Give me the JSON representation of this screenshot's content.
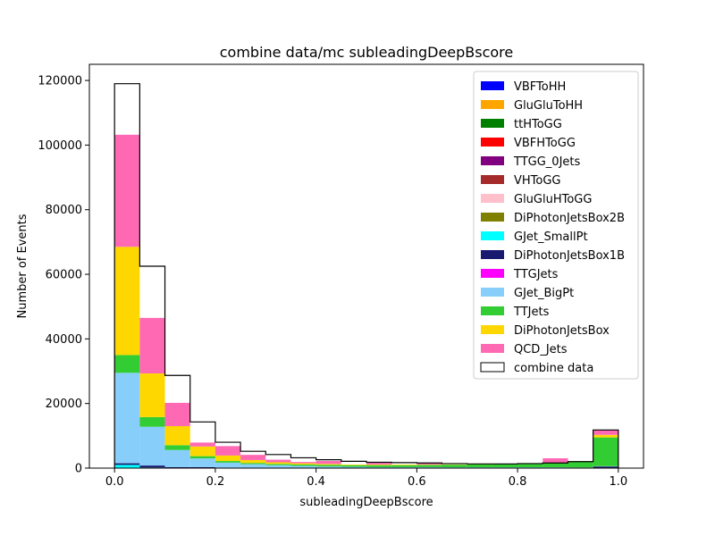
{
  "chart_data": {
    "type": "bar",
    "title": "combine data/mc subleadingDeepBscore",
    "xlabel": "subleadingDeepBscore",
    "ylabel": "Number of Events",
    "xlim": [
      -0.05,
      1.05
    ],
    "ylim": [
      0,
      125000
    ],
    "xticks": [
      0.0,
      0.2,
      0.4,
      0.6,
      0.8,
      1.0
    ],
    "xtick_labels": [
      "0.0",
      "0.2",
      "0.4",
      "0.6",
      "0.8",
      "1.0"
    ],
    "yticks": [
      0,
      20000,
      40000,
      60000,
      80000,
      100000,
      120000
    ],
    "ytick_labels": [
      "0",
      "20000",
      "40000",
      "60000",
      "80000",
      "100000",
      "120000"
    ],
    "stacked": true,
    "grid": false,
    "legend_position": "top-right",
    "bin_edges": [
      0.0,
      0.05,
      0.1,
      0.15,
      0.2,
      0.25,
      0.3,
      0.35,
      0.4,
      0.45,
      0.5,
      0.55,
      0.6,
      0.65,
      0.7,
      0.75,
      0.8,
      0.85,
      0.9,
      0.95,
      1.0
    ],
    "series": [
      {
        "name": "VBFToHH",
        "color": "#0000ff",
        "values": [
          0,
          0,
          0,
          0,
          0,
          0,
          0,
          0,
          0,
          0,
          0,
          0,
          0,
          0,
          0,
          0,
          0,
          0,
          0,
          0
        ]
      },
      {
        "name": "GluGluToHH",
        "color": "#ffa500",
        "values": [
          0,
          0,
          0,
          0,
          0,
          0,
          0,
          0,
          0,
          0,
          0,
          0,
          0,
          0,
          0,
          0,
          0,
          0,
          0,
          0
        ]
      },
      {
        "name": "ttHToGG",
        "color": "#008000",
        "values": [
          0,
          0,
          0,
          0,
          0,
          0,
          0,
          0,
          0,
          0,
          0,
          0,
          0,
          0,
          0,
          0,
          0,
          0,
          0,
          0
        ]
      },
      {
        "name": "VBFHToGG",
        "color": "#ff0000",
        "values": [
          0,
          0,
          0,
          0,
          0,
          0,
          0,
          0,
          0,
          0,
          0,
          0,
          0,
          0,
          0,
          0,
          0,
          0,
          0,
          0
        ]
      },
      {
        "name": "TTGG_0Jets",
        "color": "#800080",
        "values": [
          0,
          0,
          0,
          0,
          0,
          0,
          0,
          0,
          0,
          0,
          0,
          0,
          0,
          0,
          0,
          0,
          0,
          0,
          0,
          0
        ]
      },
      {
        "name": "VHToGG",
        "color": "#a52a2a",
        "values": [
          0,
          0,
          0,
          0,
          0,
          0,
          0,
          0,
          0,
          0,
          0,
          0,
          0,
          0,
          0,
          0,
          0,
          0,
          0,
          0
        ]
      },
      {
        "name": "GluGluHToGG",
        "color": "#ffc0cb",
        "values": [
          0,
          0,
          0,
          0,
          0,
          0,
          0,
          0,
          0,
          0,
          0,
          0,
          0,
          0,
          0,
          0,
          0,
          0,
          0,
          0
        ]
      },
      {
        "name": "DiPhotonJetsBox2B",
        "color": "#808000",
        "values": [
          0,
          0,
          0,
          0,
          0,
          0,
          0,
          0,
          0,
          0,
          0,
          0,
          0,
          0,
          0,
          0,
          0,
          0,
          0,
          0
        ]
      },
      {
        "name": "GJet_SmallPt",
        "color": "#00ffff",
        "values": [
          1000,
          200,
          0,
          0,
          0,
          0,
          0,
          0,
          0,
          0,
          0,
          0,
          0,
          0,
          0,
          0,
          0,
          0,
          0,
          0
        ]
      },
      {
        "name": "DiPhotonJetsBox1B",
        "color": "#191970",
        "values": [
          500,
          600,
          300,
          300,
          100,
          100,
          100,
          100,
          100,
          100,
          100,
          100,
          100,
          100,
          100,
          100,
          100,
          100,
          100,
          500
        ]
      },
      {
        "name": "TTGJets",
        "color": "#ff00ff",
        "values": [
          0,
          0,
          0,
          0,
          0,
          0,
          0,
          0,
          0,
          0,
          0,
          0,
          0,
          0,
          0,
          0,
          0,
          0,
          0,
          0
        ]
      },
      {
        "name": "GJet_BigPt",
        "color": "#87cefa",
        "values": [
          28000,
          12000,
          5300,
          2700,
          1600,
          1100,
          800,
          600,
          400,
          300,
          200,
          200,
          200,
          150,
          150,
          150,
          150,
          150,
          100,
          100
        ]
      },
      {
        "name": "TTJets",
        "color": "#32cd32",
        "values": [
          5500,
          3000,
          1500,
          700,
          500,
          400,
          400,
          400,
          500,
          500,
          600,
          600,
          700,
          800,
          900,
          1000,
          1100,
          1300,
          1800,
          8900
        ]
      },
      {
        "name": "DiPhotonJetsBox",
        "color": "#ffd700",
        "values": [
          33500,
          13500,
          5900,
          3000,
          1700,
          900,
          500,
          400,
          300,
          200,
          200,
          200,
          100,
          100,
          100,
          100,
          100,
          100,
          100,
          800
        ]
      },
      {
        "name": "QCD_Jets",
        "color": "#ff69b4",
        "values": [
          34700,
          17200,
          7200,
          1200,
          2900,
          1600,
          800,
          400,
          900,
          0,
          500,
          0,
          400,
          0,
          0,
          0,
          0,
          1400,
          0,
          1500
        ]
      }
    ],
    "data_series": {
      "name": "combine data",
      "values": [
        119000,
        62500,
        28700,
        14300,
        8000,
        5200,
        4200,
        3200,
        2600,
        2100,
        1800,
        1700,
        1600,
        1400,
        1300,
        1300,
        1400,
        1600,
        2000,
        11800
      ]
    }
  }
}
